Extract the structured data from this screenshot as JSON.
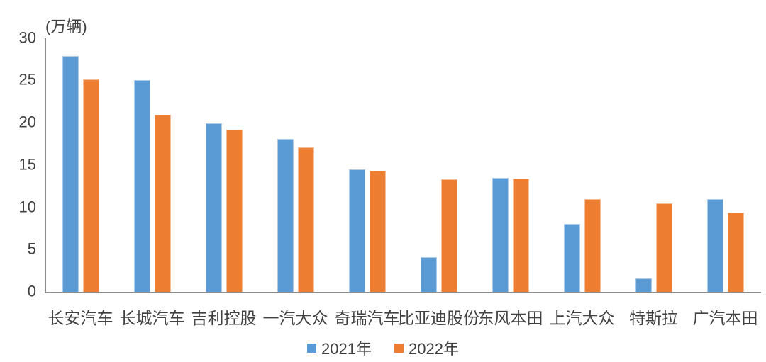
{
  "chart_data": {
    "type": "bar",
    "title": "",
    "unit_label": "(万辆)",
    "categories": [
      "长安汽车",
      "长城汽车",
      "吉利控股",
      "一汽大众",
      "奇瑞汽车",
      "比亚迪股份",
      "东风本田",
      "上汽大众",
      "特斯拉",
      "广汽本田"
    ],
    "series": [
      {
        "name": "2021年",
        "color": "#5B9BD5",
        "edge_color": "#AECBEA",
        "values": [
          27.9,
          25.0,
          19.9,
          18.1,
          14.5,
          4.1,
          13.5,
          8.0,
          1.6,
          11.0
        ]
      },
      {
        "name": "2022年",
        "color": "#ED7D31",
        "edge_color": "#F6BE98",
        "values": [
          25.1,
          20.9,
          19.2,
          17.1,
          14.3,
          13.3,
          13.4,
          11.0,
          10.5,
          9.4
        ]
      }
    ],
    "xlabel": "",
    "ylabel": "",
    "ylim": [
      0,
      30
    ],
    "y_ticks": [
      0,
      5,
      10,
      15,
      20,
      25,
      30
    ],
    "grid": false,
    "legend_position": "bottom",
    "axis_color": "#8C8C8C",
    "text_color": "#404040"
  }
}
